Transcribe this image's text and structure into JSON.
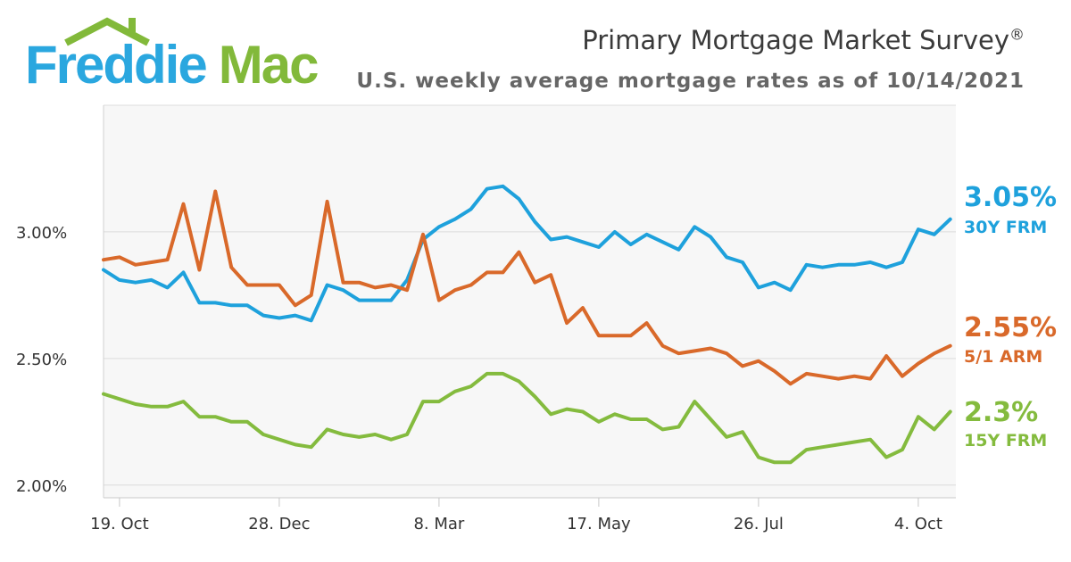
{
  "logo": {
    "word1": "Freddie",
    "word2": "Mac"
  },
  "header": {
    "title": "Primary Mortgage Market Survey",
    "title_mark": "®",
    "subtitle": "U.S. weekly average mortgage rates as of 10/14/2021"
  },
  "colors": {
    "frm30": "#1ea1dc",
    "arm51": "#d9692a",
    "frm15": "#84bb3e",
    "brand_blue": "#2aa7df",
    "brand_green": "#82b93a"
  },
  "chart_data": {
    "type": "line",
    "title": "Primary Mortgage Market Survey",
    "subtitle": "U.S. weekly average mortgage rates as of 10/14/2021",
    "x_tick_labels": [
      "19. Oct",
      "28. Dec",
      "8. Mar",
      "17. May",
      "26. Jul",
      "4. Oct"
    ],
    "x_tick_week_index": [
      1,
      11,
      21,
      31,
      41,
      51
    ],
    "y_tick_labels": [
      "2.00%",
      "2.50%",
      "3.00%"
    ],
    "y_tick_values": [
      2.0,
      2.5,
      3.0
    ],
    "ylim": [
      1.95,
      3.5
    ],
    "grid": true,
    "series": [
      {
        "name": "30Y FRM",
        "end_label": "3.05%",
        "values": [
          2.85,
          2.81,
          2.8,
          2.81,
          2.78,
          2.84,
          2.72,
          2.72,
          2.71,
          2.71,
          2.67,
          2.66,
          2.67,
          2.65,
          2.79,
          2.77,
          2.73,
          2.73,
          2.73,
          2.81,
          2.97,
          3.02,
          3.05,
          3.09,
          3.17,
          3.18,
          3.13,
          3.04,
          2.97,
          2.98,
          2.96,
          2.94,
          3.0,
          2.95,
          2.99,
          2.96,
          2.93,
          3.02,
          2.98,
          2.9,
          2.88,
          2.78,
          2.8,
          2.77,
          2.87,
          2.86,
          2.87,
          2.87,
          2.88,
          2.86,
          2.88,
          3.01,
          2.99,
          3.05
        ]
      },
      {
        "name": "5/1 ARM",
        "end_label": "2.55%",
        "values": [
          2.89,
          2.9,
          2.87,
          2.88,
          2.89,
          3.11,
          2.85,
          3.16,
          2.86,
          2.79,
          2.79,
          2.79,
          2.71,
          2.75,
          3.12,
          2.8,
          2.8,
          2.78,
          2.79,
          2.77,
          2.99,
          2.73,
          2.77,
          2.79,
          2.84,
          2.84,
          2.92,
          2.8,
          2.83,
          2.64,
          2.7,
          2.59,
          2.59,
          2.59,
          2.64,
          2.55,
          2.52,
          2.53,
          2.54,
          2.52,
          2.47,
          2.49,
          2.45,
          2.4,
          2.44,
          2.43,
          2.42,
          2.43,
          2.42,
          2.51,
          2.43,
          2.48,
          2.52,
          2.55
        ]
      },
      {
        "name": "15Y FRM",
        "end_label": "2.3%",
        "values": [
          2.36,
          2.34,
          2.32,
          2.31,
          2.31,
          2.33,
          2.27,
          2.27,
          2.25,
          2.25,
          2.2,
          2.18,
          2.16,
          2.15,
          2.22,
          2.2,
          2.19,
          2.2,
          2.18,
          2.2,
          2.33,
          2.33,
          2.37,
          2.39,
          2.44,
          2.44,
          2.41,
          2.35,
          2.28,
          2.3,
          2.29,
          2.25,
          2.28,
          2.26,
          2.26,
          2.22,
          2.23,
          2.33,
          2.26,
          2.19,
          2.21,
          2.11,
          2.09,
          2.09,
          2.14,
          2.15,
          2.16,
          2.17,
          2.18,
          2.11,
          2.14,
          2.27,
          2.22,
          2.29
        ]
      }
    ]
  }
}
